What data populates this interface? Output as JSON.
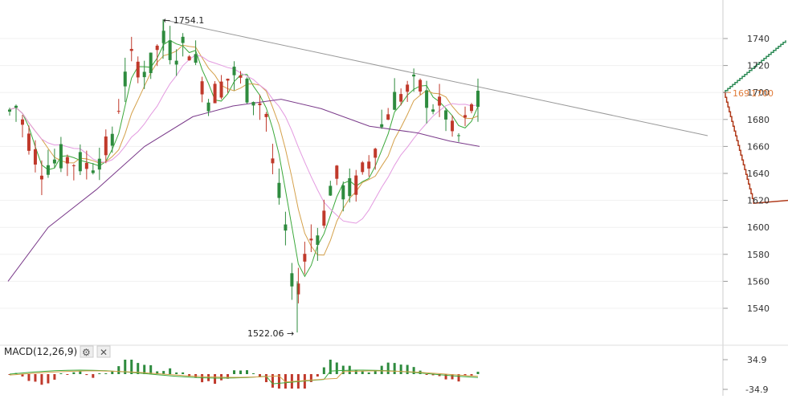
{
  "chart_data": {
    "type": "candlestick",
    "price_axis": {
      "ticks": [
        1540,
        1560,
        1580,
        1600,
        1620,
        1640,
        1660,
        1680,
        1700,
        1720,
        1740
      ],
      "tick_labels": [
        "1540",
        "1560",
        "1580",
        "1600",
        "1620",
        "1640",
        "1660",
        "1680",
        "1700",
        "1720",
        "1740"
      ],
      "range": [
        1525,
        1755
      ]
    },
    "price_tags": {
      "left_label": "169",
      "right_label": "1700",
      "buy_line_color": "#2e8b57",
      "sell_line_color": "#b03a1a"
    },
    "annotations": {
      "high": {
        "label": "← 1754.1",
        "value": 1754.1
      },
      "low": {
        "label": "1522.06 →",
        "value": 1522.06
      }
    },
    "trendline": {
      "from_value": 1754,
      "to_value": 1668
    },
    "colors": {
      "up": "#2e8b3e",
      "down": "#c0392b",
      "ma_fast": "#3aa83a",
      "ma_mid": "#d4a04a",
      "ma_slow": "#e39ae0",
      "ma_long": "#7a3a8a",
      "trendline": "#999999"
    },
    "candles_count": 74,
    "macd": {
      "title": "MACD(12,26,9)",
      "settings_icon": "gear-icon",
      "close_icon": "close-icon",
      "axis_ticks": [
        34.9,
        -34.9
      ],
      "tick_labels": [
        "34.9",
        "-34.9"
      ]
    }
  }
}
